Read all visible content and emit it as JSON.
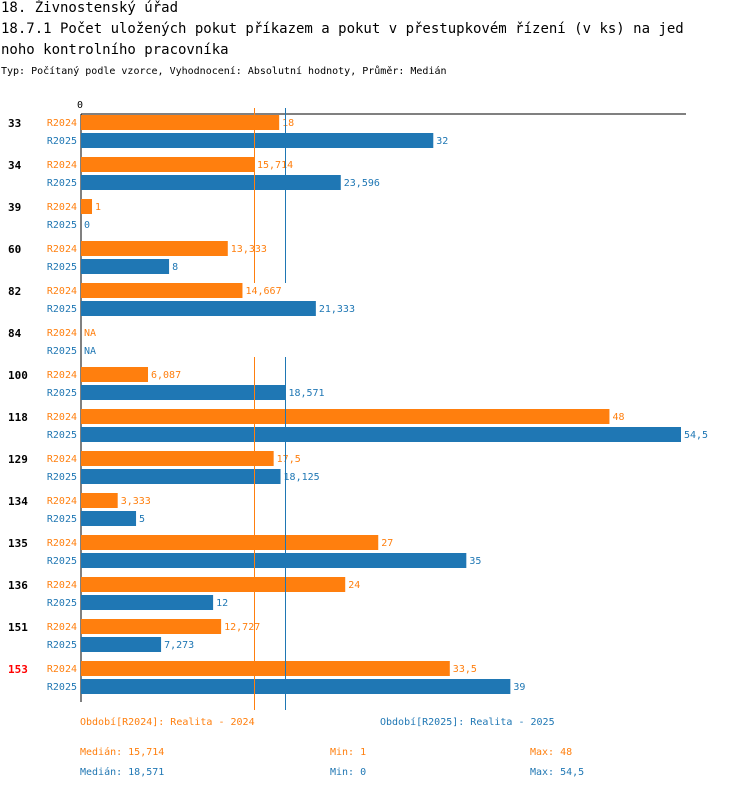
{
  "header": {
    "title_line1": "18. Živnostenský úřad",
    "title_line2": "18.7.1 Počet uložených pokut příkazem a pokut v přestupkovém řízení (v ks) na jed",
    "title_line3": "noho kontrolního pracovníka",
    "subtitle": "Typ: Počítaný podle vzorce, Vyhodnocení: Absolutní hodnoty, Průměr: Medián"
  },
  "colors": {
    "r2024": "#ff7f0e",
    "r2025": "#1f77b4",
    "highlight": "#ff0000",
    "axis": "#000000"
  },
  "chart_data": {
    "type": "bar",
    "orientation": "horizontal",
    "xlim": [
      0,
      54.5
    ],
    "x_tick_labels": [
      "0"
    ],
    "categories": [
      "33",
      "34",
      "39",
      "60",
      "82",
      "84",
      "100",
      "118",
      "129",
      "134",
      "135",
      "136",
      "151",
      "153"
    ],
    "highlight_category": "153",
    "series": [
      {
        "name": "R2024",
        "values": [
          18,
          15.714,
          1,
          13.333,
          14.667,
          null,
          6.087,
          48,
          17.5,
          3.333,
          27,
          24,
          12.727,
          33.5
        ],
        "labels": [
          "18",
          "15,714",
          "1",
          "13,333",
          "14,667",
          "NA",
          "6,087",
          "48",
          "17,5",
          "3,333",
          "27",
          "24",
          "12,727",
          "33,5"
        ]
      },
      {
        "name": "R2025",
        "values": [
          32,
          23.596,
          0,
          8,
          21.333,
          null,
          18.571,
          54.5,
          18.125,
          5,
          35,
          12,
          7.273,
          39
        ],
        "labels": [
          "32",
          "23,596",
          "0",
          "8",
          "21,333",
          "NA",
          "18,571",
          "54,5",
          "18,125",
          "5",
          "35",
          "12",
          "7,273",
          "39"
        ]
      }
    ],
    "median_lines": [
      15.714,
      18.571
    ]
  },
  "legend": {
    "r2024_period": "Období[R2024]: Realita - 2024",
    "r2025_period": "Období[R2025]: Realita - 2025",
    "r2024_median": "Medián: 15,714",
    "r2024_min": "Min: 1",
    "r2024_max": "Max: 48",
    "r2025_median": "Medián: 18,571",
    "r2025_min": "Min: 0",
    "r2025_max": "Max: 54,5"
  }
}
